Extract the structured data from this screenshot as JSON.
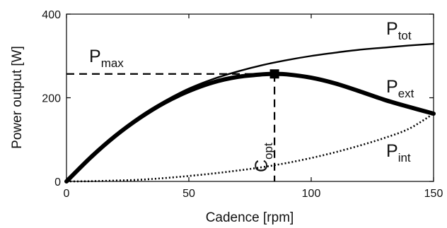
{
  "chart_data": {
    "type": "line",
    "title": "",
    "xlabel": "Cadence [rpm]",
    "ylabel": "Power output [W]",
    "xlim": [
      0,
      150
    ],
    "ylim": [
      0,
      400
    ],
    "xticks": [
      0,
      50,
      100,
      150
    ],
    "yticks": [
      0,
      200,
      400
    ],
    "grid": false,
    "legend": "none",
    "series": [
      {
        "label": {
          "main": "P",
          "sub": "tot"
        },
        "style": "solid-thin",
        "color": "#000000",
        "x": [
          0,
          10,
          20,
          30,
          40,
          50,
          60,
          70,
          80,
          90,
          100,
          110,
          120,
          130,
          140,
          150
        ],
        "y": [
          0,
          60,
          112,
          156,
          192,
          222,
          245,
          263,
          278,
          290,
          300,
          308,
          315,
          320,
          325,
          329
        ]
      },
      {
        "label": {
          "main": "P",
          "sub": "ext"
        },
        "style": "solid-thick",
        "color": "#000000",
        "x": [
          0,
          10,
          20,
          30,
          40,
          50,
          60,
          70,
          80,
          85,
          90,
          100,
          110,
          120,
          130,
          140,
          150
        ],
        "y": [
          0,
          58,
          109,
          152,
          188,
          216,
          237,
          250,
          256,
          257,
          256,
          248,
          234,
          215,
          195,
          178,
          162
        ]
      },
      {
        "label": {
          "main": "P",
          "sub": "int"
        },
        "style": "dotted",
        "color": "#000000",
        "x": [
          0,
          10,
          20,
          30,
          40,
          50,
          60,
          70,
          80,
          90,
          100,
          110,
          120,
          130,
          140,
          150
        ],
        "y": [
          0,
          0.5,
          2,
          4,
          8,
          13,
          19,
          26,
          34,
          44,
          56,
          70,
          86,
          104,
          126,
          162
        ]
      }
    ],
    "optimum": {
      "x": 85,
      "y": 257,
      "marker": "square",
      "hline_label": {
        "main": "P",
        "sub": "max"
      },
      "vline_label": {
        "main": "C",
        "sub": "opt"
      }
    }
  }
}
